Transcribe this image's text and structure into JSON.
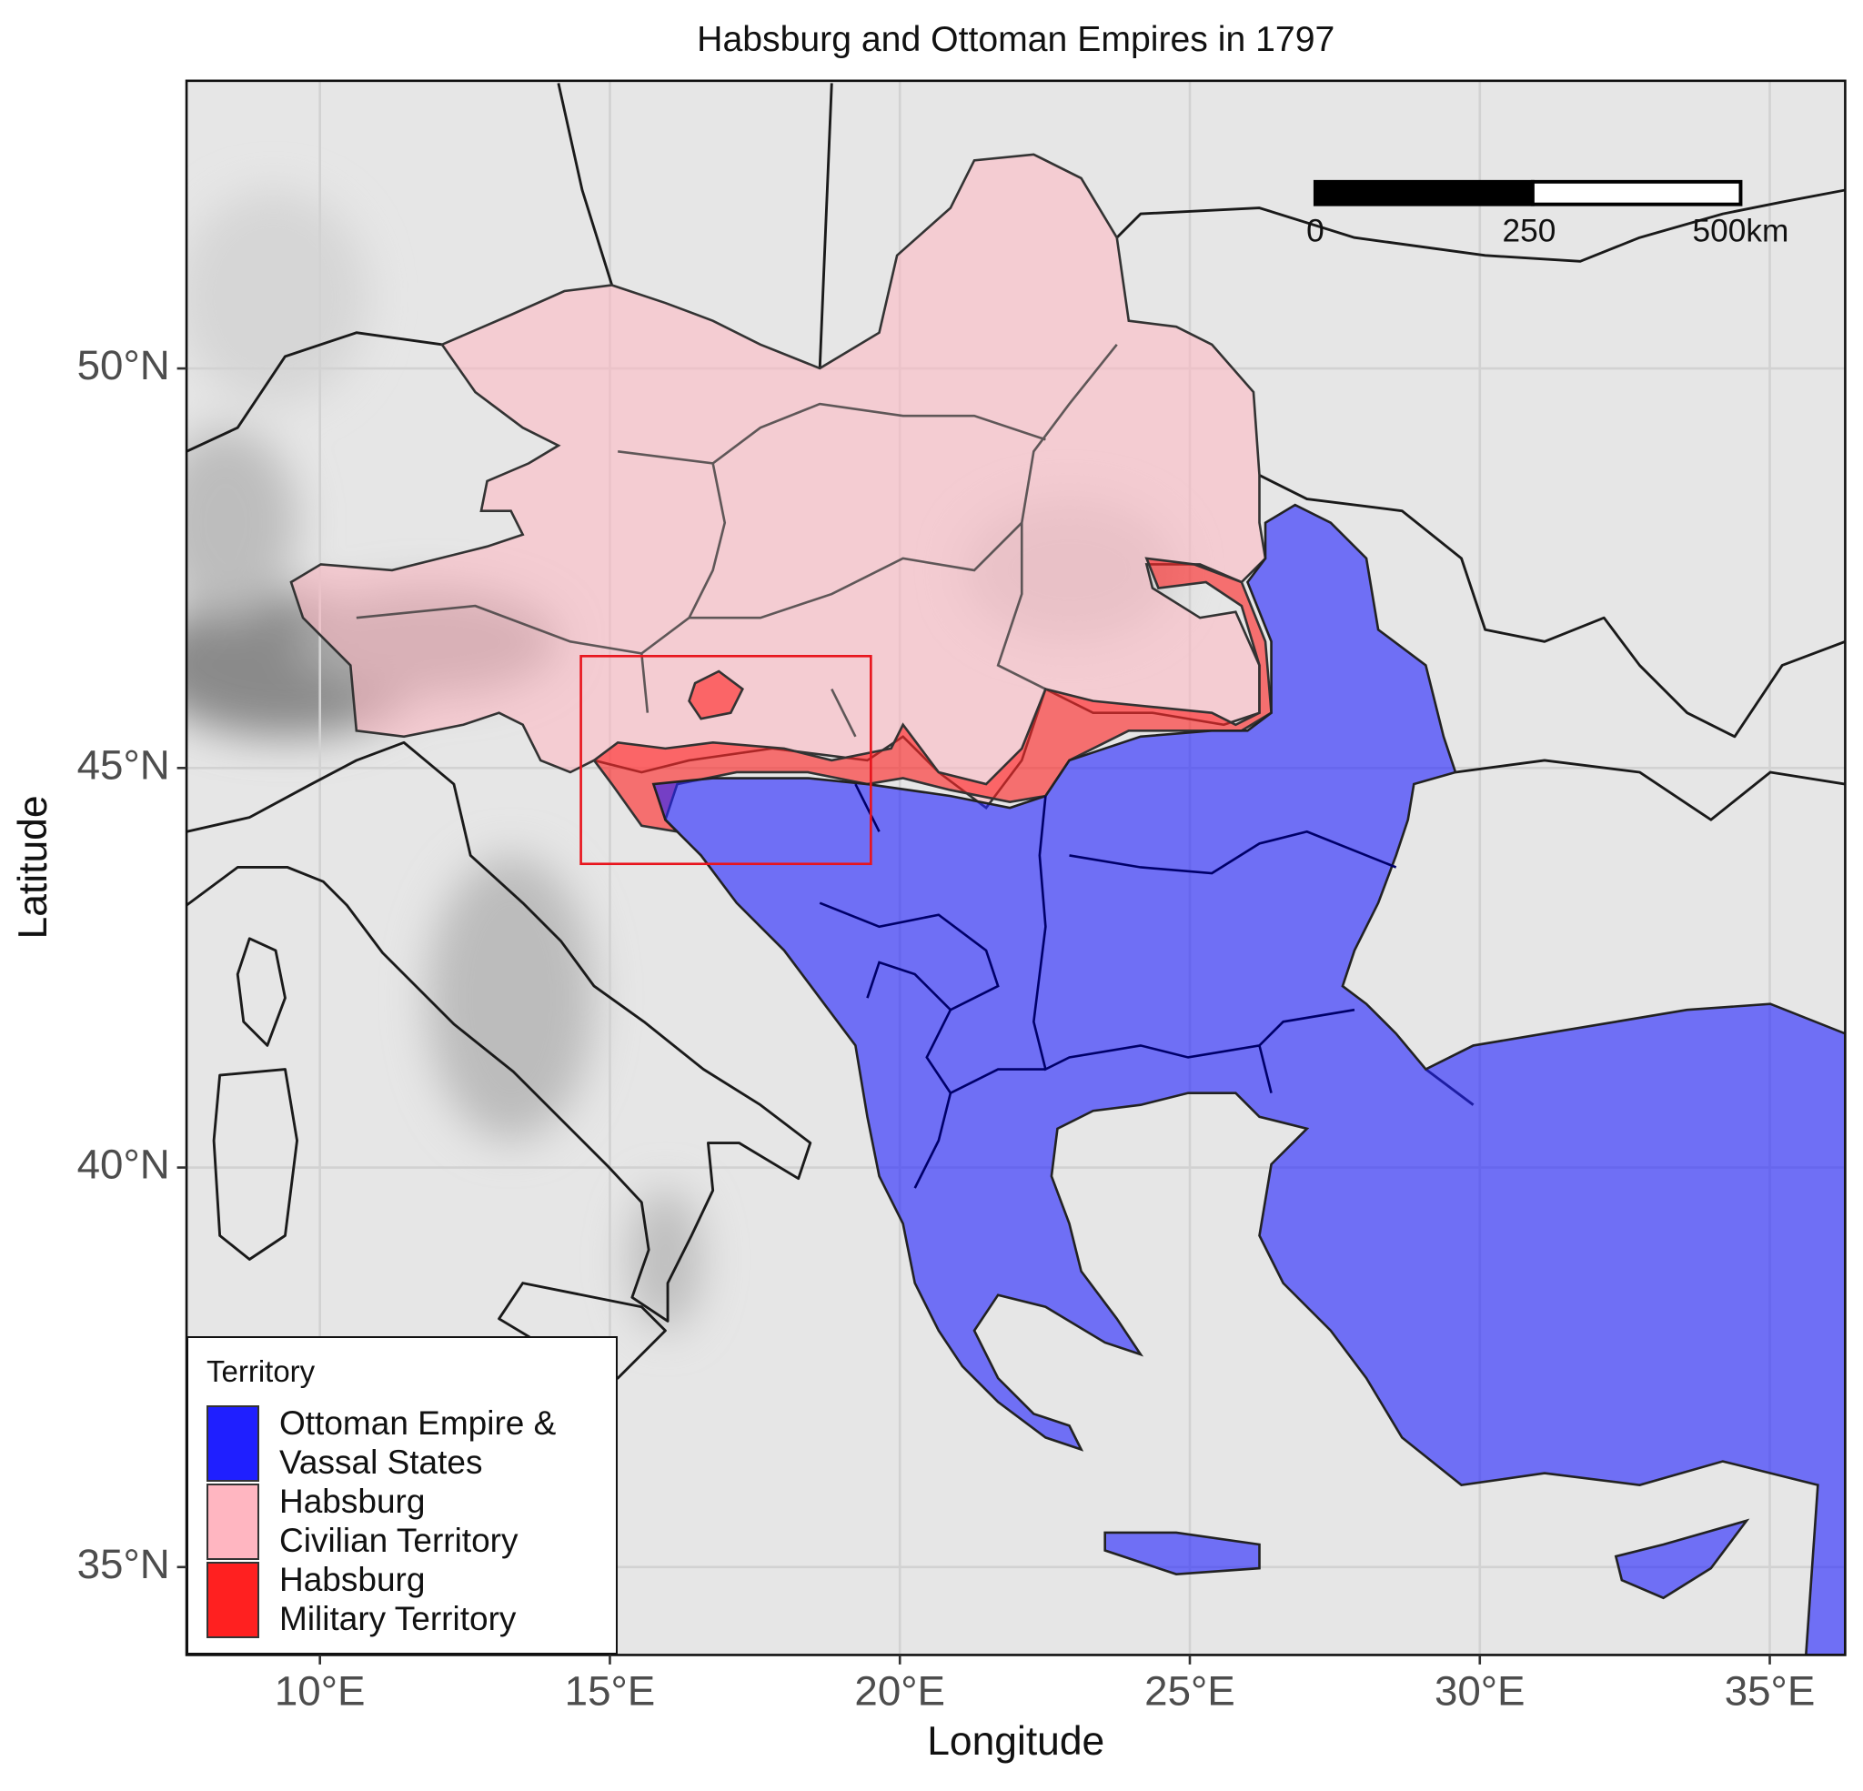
{
  "chart_data": {
    "type": "map",
    "title": "Habsburg and Ottoman Empires in 1797",
    "x_label": "Longitude",
    "y_label": "Latitude",
    "xlim": [
      7.7,
      36.3
    ],
    "ylim": [
      33.9,
      53.6
    ],
    "xticks": [
      {
        "value": 10,
        "label": "10°E"
      },
      {
        "value": 15,
        "label": "15°E"
      },
      {
        "value": 20,
        "label": "20°E"
      },
      {
        "value": 25,
        "label": "25°E"
      },
      {
        "value": 30,
        "label": "30°E"
      },
      {
        "value": 35,
        "label": "35°E"
      }
    ],
    "yticks": [
      {
        "value": 35,
        "label": "35°N"
      },
      {
        "value": 40,
        "label": "40°N"
      },
      {
        "value": 45,
        "label": "45°N"
      },
      {
        "value": 50,
        "label": "50°N"
      }
    ],
    "grid": true,
    "legend_title": "Territory",
    "legend_position": "bottom-left",
    "series": [
      {
        "name": "Ottoman Empire &\nVassal States",
        "color": "#1f1fff"
      },
      {
        "name": "Habsburg\nCivilian Territory",
        "color": "#ffb6c1"
      },
      {
        "name": "Habsburg\nMilitary Territory",
        "color": "#ff2020"
      }
    ],
    "highlight_box": {
      "xlim": [
        14.5,
        19.5
      ],
      "ylim": [
        43.8,
        46.4
      ],
      "color": "#e8141c"
    },
    "scale_bar": {
      "labels": [
        "0",
        "250",
        "500km"
      ]
    }
  }
}
